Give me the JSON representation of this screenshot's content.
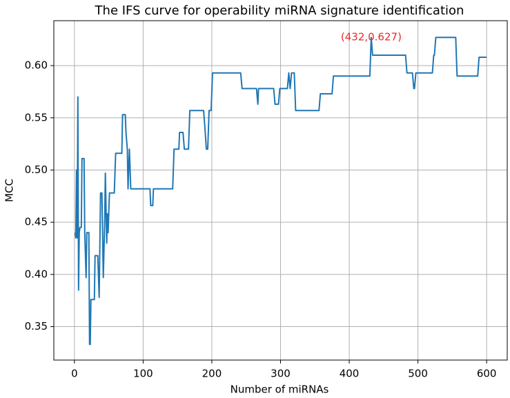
{
  "chart_data": {
    "type": "line",
    "title": "The IFS curve for operability miRNA signature identification",
    "x_label": "Number of miRNAs",
    "y_label": "MCC",
    "annotation": "(432,0.627)",
    "annotation_color": "#e8282a",
    "x": [
      1,
      2,
      3,
      4,
      5,
      6,
      7,
      8,
      10,
      11,
      14,
      15,
      17,
      18,
      21,
      22,
      23,
      24,
      29,
      30,
      34,
      36,
      38,
      40,
      42,
      44,
      45,
      47,
      48,
      49,
      51,
      58,
      60,
      69,
      70,
      74,
      75,
      77,
      78,
      80,
      82,
      110,
      111,
      114,
      115,
      143,
      145,
      152,
      153,
      158,
      160,
      166,
      168,
      188,
      190,
      192,
      194,
      196,
      199,
      201,
      242,
      244,
      265,
      267,
      268,
      290,
      292,
      297,
      299,
      310,
      312,
      314,
      316,
      320,
      322,
      356,
      358,
      375,
      377,
      430,
      432,
      434,
      482,
      484,
      492,
      494,
      495,
      497,
      521,
      523,
      524,
      526,
      555,
      557,
      587,
      589,
      600
    ],
    "series": [
      {
        "name": "MCC",
        "color": "#1f77b4",
        "values": [
          0.44,
          0.435,
          0.5,
          0.435,
          0.57,
          0.385,
          0.44,
          0.445,
          0.445,
          0.511,
          0.511,
          0.44,
          0.397,
          0.44,
          0.44,
          0.333,
          0.333,
          0.376,
          0.376,
          0.418,
          0.418,
          0.378,
          0.478,
          0.478,
          0.397,
          0.45,
          0.497,
          0.43,
          0.458,
          0.44,
          0.478,
          0.478,
          0.516,
          0.516,
          0.553,
          0.553,
          0.536,
          0.52,
          0.482,
          0.52,
          0.482,
          0.482,
          0.466,
          0.466,
          0.482,
          0.482,
          0.52,
          0.52,
          0.536,
          0.536,
          0.52,
          0.52,
          0.557,
          0.557,
          0.54,
          0.52,
          0.52,
          0.557,
          0.557,
          0.593,
          0.593,
          0.578,
          0.578,
          0.563,
          0.578,
          0.578,
          0.563,
          0.563,
          0.578,
          0.578,
          0.593,
          0.578,
          0.593,
          0.593,
          0.557,
          0.557,
          0.573,
          0.573,
          0.59,
          0.59,
          0.627,
          0.61,
          0.61,
          0.593,
          0.593,
          0.578,
          0.578,
          0.593,
          0.593,
          0.61,
          0.61,
          0.627,
          0.627,
          0.59,
          0.59,
          0.608,
          0.608
        ]
      }
    ],
    "xlim": [
      -30,
      630
    ],
    "ylim": [
      0.318,
      0.643
    ],
    "xticks": [
      0,
      100,
      200,
      300,
      400,
      500,
      600
    ],
    "yticks": [
      0.35,
      {
        "value": 0.4,
        "label": "0.40"
      },
      0.45,
      {
        "value": 0.5,
        "label": "0.50"
      },
      0.55,
      {
        "value": 0.6,
        "label": "0.60"
      }
    ],
    "grid": true
  }
}
